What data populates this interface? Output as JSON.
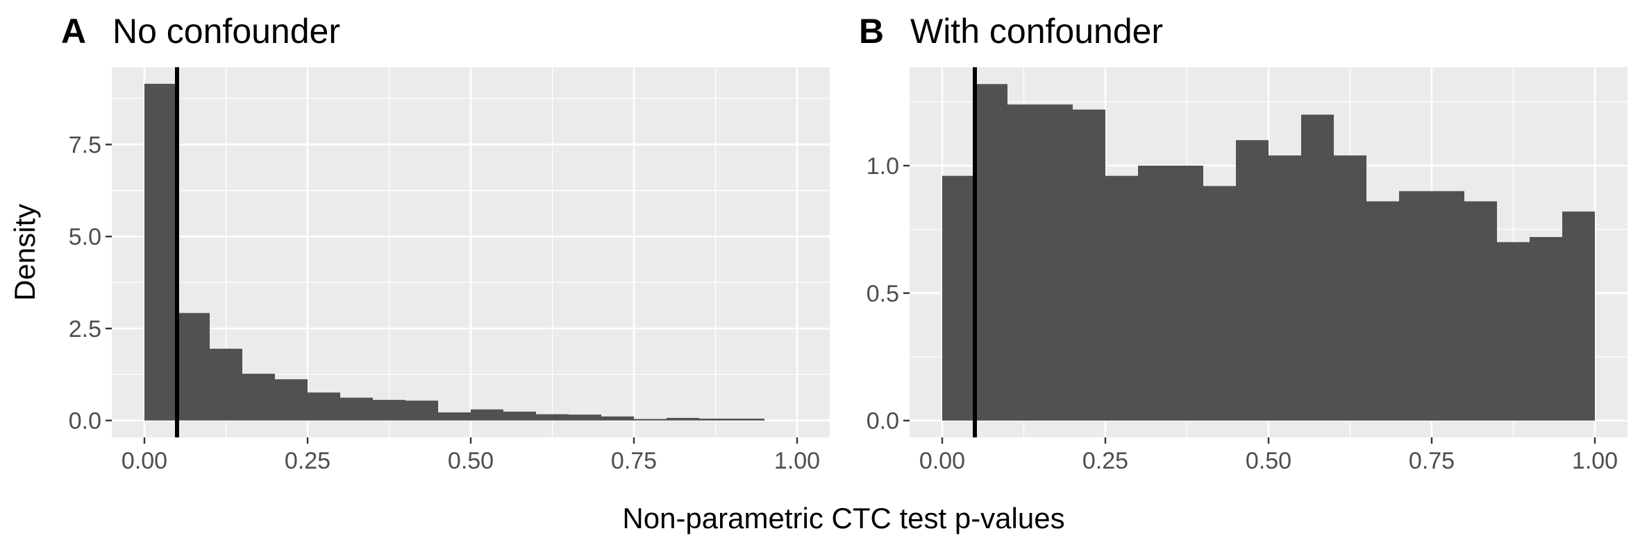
{
  "xlabel": "Non-parametric CTC test p-values",
  "ylabel": "Density",
  "colors": {
    "panel_bg": "#ebebeb",
    "grid": "#ffffff",
    "bar_fill": "#525052",
    "reference_line": "#000000",
    "tick_text": "#4d4d4d"
  },
  "chart_data": [
    {
      "type": "bar",
      "tag": "A",
      "title": "No confounder",
      "bin_width": 0.05,
      "bin_starts": [
        0.0,
        0.05,
        0.1,
        0.15,
        0.2,
        0.25,
        0.3,
        0.35,
        0.4,
        0.45,
        0.5,
        0.55,
        0.6,
        0.65,
        0.7,
        0.75,
        0.8,
        0.85,
        0.9
      ],
      "values": [
        9.15,
        2.92,
        1.95,
        1.27,
        1.12,
        0.76,
        0.62,
        0.56,
        0.54,
        0.22,
        0.3,
        0.24,
        0.17,
        0.16,
        0.11,
        0.04,
        0.07,
        0.05,
        0.05
      ],
      "reference_line_x": 0.05,
      "xlim": [
        -0.05,
        1.05
      ],
      "ylim": [
        -0.46,
        9.6
      ],
      "x_ticks": [
        0.0,
        0.25,
        0.5,
        0.75,
        1.0
      ],
      "x_tick_labels": [
        "0.00",
        "0.25",
        "0.50",
        "0.75",
        "1.00"
      ],
      "y_ticks": [
        0.0,
        2.5,
        5.0,
        7.5
      ],
      "y_tick_labels": [
        "0.0",
        "2.5",
        "5.0",
        "7.5"
      ],
      "grid": true
    },
    {
      "type": "bar",
      "tag": "B",
      "title": "With confounder",
      "bin_width": 0.05,
      "bin_starts": [
        0.0,
        0.05,
        0.1,
        0.15,
        0.2,
        0.25,
        0.3,
        0.35,
        0.4,
        0.45,
        0.5,
        0.55,
        0.6,
        0.65,
        0.7,
        0.75,
        0.8,
        0.85,
        0.9,
        0.95
      ],
      "values": [
        0.96,
        1.32,
        1.24,
        1.24,
        1.22,
        0.96,
        1.0,
        1.0,
        0.92,
        1.1,
        1.04,
        1.2,
        1.04,
        0.86,
        0.9,
        0.9,
        0.86,
        0.7,
        0.72,
        0.82
      ],
      "reference_line_x": 0.05,
      "xlim": [
        -0.05,
        1.05
      ],
      "ylim": [
        -0.066,
        1.386
      ],
      "x_ticks": [
        0.0,
        0.25,
        0.5,
        0.75,
        1.0
      ],
      "x_tick_labels": [
        "0.00",
        "0.25",
        "0.50",
        "0.75",
        "1.00"
      ],
      "y_ticks": [
        0.0,
        0.5,
        1.0
      ],
      "y_tick_labels": [
        "0.0",
        "0.5",
        "1.0"
      ],
      "grid": true
    }
  ]
}
